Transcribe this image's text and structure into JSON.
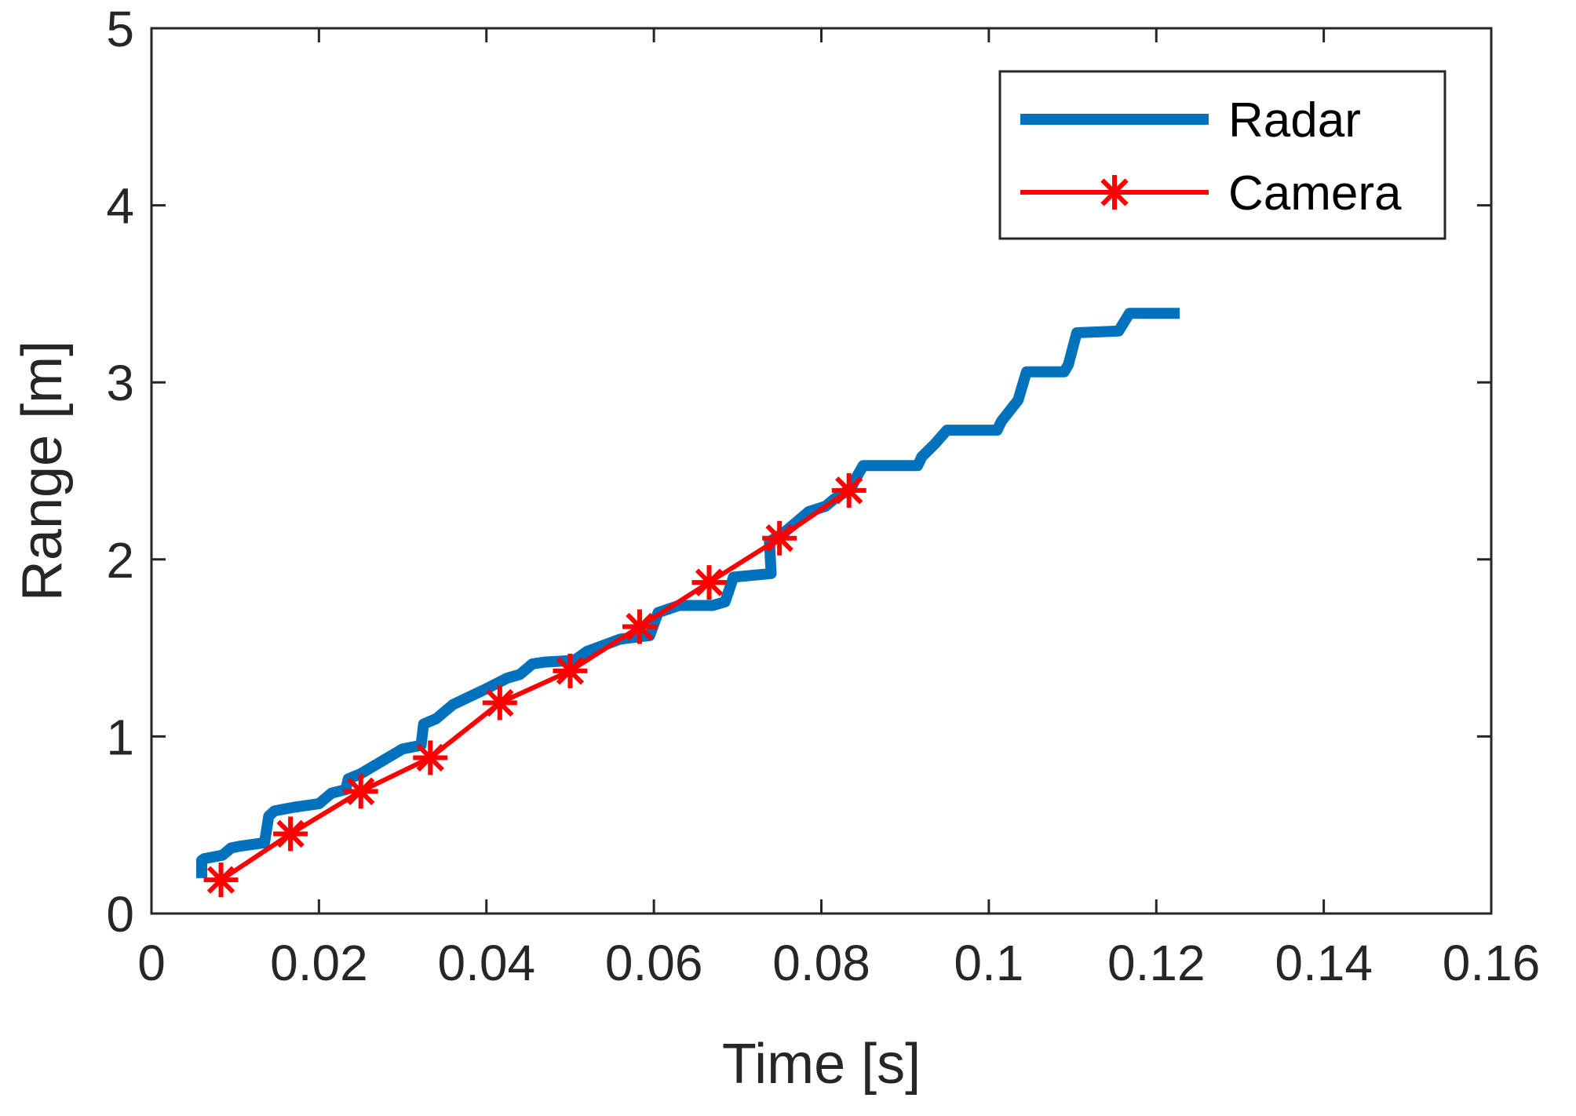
{
  "chart_data": {
    "type": "line",
    "title": "",
    "xlabel": "Time [s]",
    "ylabel": "Range [m]",
    "xlim": [
      0,
      0.16
    ],
    "ylim": [
      0,
      5
    ],
    "xticks": [
      0,
      0.02,
      0.04,
      0.06,
      0.08,
      0.1,
      0.12,
      0.14,
      0.16
    ],
    "xtick_labels": [
      "0",
      "0.02",
      "0.04",
      "0.06",
      "0.08",
      "0.1",
      "0.12",
      "0.14",
      "0.16"
    ],
    "yticks": [
      0,
      1,
      2,
      3,
      4,
      5
    ],
    "ytick_labels": [
      "0",
      "1",
      "2",
      "3",
      "4",
      "5"
    ],
    "grid": false,
    "legend_position": "top-right",
    "series": [
      {
        "name": "Radar",
        "color": "#0072BD",
        "marker": "none",
        "x": [
          0.006,
          0.006,
          0.0063,
          0.0085,
          0.0095,
          0.0105,
          0.0135,
          0.014,
          0.0147,
          0.017,
          0.02,
          0.0215,
          0.0232,
          0.0235,
          0.025,
          0.03,
          0.0322,
          0.0325,
          0.034,
          0.036,
          0.04,
          0.0425,
          0.044,
          0.0455,
          0.047,
          0.0505,
          0.052,
          0.056,
          0.0595,
          0.0605,
          0.063,
          0.067,
          0.0685,
          0.0695,
          0.074,
          0.0738,
          0.0755,
          0.0785,
          0.0805,
          0.0815,
          0.0835,
          0.0845,
          0.085,
          0.0915,
          0.092,
          0.0935,
          0.095,
          0.101,
          0.1015,
          0.1035,
          0.1045,
          0.109,
          0.1095,
          0.1105,
          0.1155,
          0.1168,
          0.1228
        ],
        "y": [
          0.2,
          0.3,
          0.31,
          0.33,
          0.37,
          0.38,
          0.4,
          0.55,
          0.58,
          0.6,
          0.62,
          0.68,
          0.7,
          0.76,
          0.79,
          0.93,
          0.95,
          1.07,
          1.1,
          1.18,
          1.27,
          1.33,
          1.35,
          1.41,
          1.42,
          1.43,
          1.48,
          1.55,
          1.57,
          1.7,
          1.74,
          1.74,
          1.76,
          1.9,
          1.92,
          2.1,
          2.15,
          2.27,
          2.3,
          2.34,
          2.4,
          2.49,
          2.53,
          2.53,
          2.58,
          2.65,
          2.73,
          2.73,
          2.78,
          2.9,
          3.06,
          3.06,
          3.1,
          3.28,
          3.29,
          3.39,
          3.39
        ]
      },
      {
        "name": "Camera",
        "color": "#FF0000",
        "marker": "asterisk",
        "x": [
          0.0083,
          0.0166,
          0.025,
          0.0333,
          0.0416,
          0.05,
          0.0583,
          0.0666,
          0.075,
          0.0833
        ],
        "y": [
          0.19,
          0.45,
          0.69,
          0.88,
          1.19,
          1.37,
          1.62,
          1.87,
          2.12,
          2.39
        ]
      }
    ]
  }
}
